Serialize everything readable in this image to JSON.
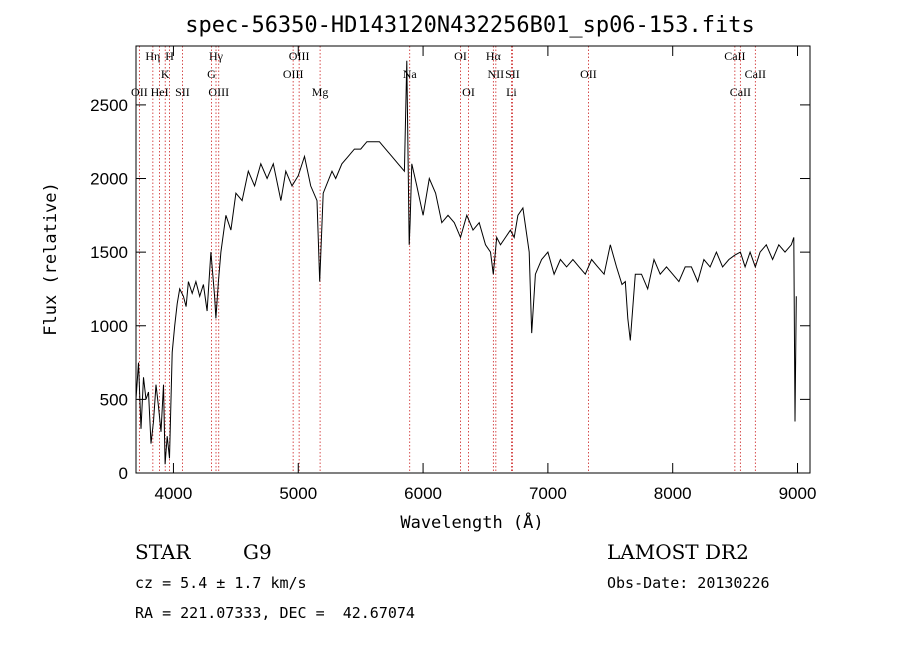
{
  "chart_data": {
    "type": "line",
    "title": "spec-56350-HD143120N432256B01_sp06-153.fits",
    "xlabel": "Wavelength (Å)",
    "ylabel": "Flux (relative)",
    "xlim": [
      3700,
      9100
    ],
    "ylim": [
      0,
      2900
    ],
    "xticks": [
      4000,
      5000,
      6000,
      7000,
      8000,
      9000
    ],
    "yticks": [
      0,
      500,
      1000,
      1500,
      2000,
      2500
    ],
    "grid": false,
    "series": [
      {
        "x": [
          3700,
          3720,
          3740,
          3760,
          3780,
          3800,
          3820,
          3840,
          3860,
          3880,
          3900,
          3920,
          3933,
          3950,
          3968,
          3990,
          4010,
          4030,
          4050,
          4080,
          4101,
          4120,
          4150,
          4180,
          4210,
          4240,
          4270,
          4300,
          4330,
          4340,
          4360,
          4380,
          4420,
          4460,
          4500,
          4550,
          4600,
          4650,
          4700,
          4750,
          4800,
          4861,
          4900,
          4950,
          5000,
          5050,
          5100,
          5150,
          5172,
          5200,
          5270,
          5300,
          5350,
          5400,
          5450,
          5500,
          5550,
          5600,
          5650,
          5700,
          5750,
          5800,
          5850,
          5870,
          5889,
          5896,
          5910,
          5950,
          6000,
          6050,
          6100,
          6150,
          6200,
          6250,
          6300,
          6350,
          6400,
          6450,
          6500,
          6540,
          6563,
          6590,
          6620,
          6660,
          6700,
          6730,
          6760,
          6800,
          6850,
          6870,
          6900,
          6950,
          7000,
          7050,
          7100,
          7150,
          7200,
          7250,
          7300,
          7350,
          7400,
          7450,
          7500,
          7550,
          7594,
          7620,
          7640,
          7660,
          7700,
          7750,
          7800,
          7850,
          7900,
          7950,
          8000,
          8050,
          8100,
          8150,
          8200,
          8250,
          8300,
          8350,
          8400,
          8450,
          8498,
          8542,
          8580,
          8620,
          8662,
          8700,
          8750,
          8800,
          8850,
          8900,
          8950,
          8970,
          8980,
          8990
        ],
        "y": [
          500,
          750,
          300,
          650,
          500,
          550,
          200,
          350,
          600,
          450,
          280,
          600,
          60,
          250,
          100,
          820,
          1000,
          1150,
          1250,
          1200,
          1130,
          1300,
          1220,
          1300,
          1200,
          1280,
          1100,
          1500,
          1200,
          1050,
          1300,
          1500,
          1750,
          1650,
          1900,
          1850,
          2050,
          1950,
          2100,
          2000,
          2100,
          1850,
          2050,
          1950,
          2020,
          2150,
          1950,
          1850,
          1300,
          1900,
          2050,
          2000,
          2100,
          2150,
          2200,
          2200,
          2250,
          2250,
          2250,
          2200,
          2150,
          2100,
          2050,
          2800,
          1550,
          1700,
          2100,
          1950,
          1750,
          2000,
          1900,
          1700,
          1750,
          1700,
          1600,
          1750,
          1650,
          1700,
          1550,
          1500,
          1350,
          1600,
          1550,
          1600,
          1650,
          1600,
          1750,
          1800,
          1500,
          950,
          1350,
          1450,
          1500,
          1350,
          1450,
          1400,
          1450,
          1400,
          1350,
          1450,
          1400,
          1350,
          1550,
          1400,
          1280,
          1300,
          1050,
          900,
          1350,
          1350,
          1250,
          1450,
          1350,
          1400,
          1350,
          1300,
          1400,
          1400,
          1300,
          1450,
          1400,
          1500,
          1400,
          1450,
          1480,
          1500,
          1400,
          1500,
          1400,
          1500,
          1550,
          1450,
          1550,
          1500,
          1550,
          1600,
          350,
          1200
        ]
      }
    ],
    "line_markers": [
      {
        "label": "OII",
        "x": 3727,
        "row": 3
      },
      {
        "label": "Hη",
        "x": 3835,
        "row": 1
      },
      {
        "label": "HeI",
        "x": 3889,
        "row": 3
      },
      {
        "label": "K",
        "x": 3934,
        "row": 2
      },
      {
        "label": "H",
        "x": 3969,
        "row": 1
      },
      {
        "label": "SII",
        "x": 4072,
        "row": 3
      },
      {
        "label": "Hγ",
        "x": 4341,
        "row": 1
      },
      {
        "label": "G",
        "x": 4305,
        "row": 2
      },
      {
        "label": "OIII",
        "x": 4363,
        "row": 3
      },
      {
        "label": "OIII",
        "x": 5007,
        "row": 1
      },
      {
        "label": "OIII",
        "x": 4959,
        "row": 2
      },
      {
        "label": "Mg",
        "x": 5175,
        "row": 3
      },
      {
        "label": "Na",
        "x": 5893,
        "row": 2
      },
      {
        "label": "OI",
        "x": 6300,
        "row": 1
      },
      {
        "label": "OI",
        "x": 6364,
        "row": 3
      },
      {
        "label": "Hα",
        "x": 6563,
        "row": 1
      },
      {
        "label": "NII",
        "x": 6583,
        "row": 2
      },
      {
        "label": "SII",
        "x": 6716,
        "row": 2
      },
      {
        "label": "Li",
        "x": 6708,
        "row": 3
      },
      {
        "label": "OII",
        "x": 7325,
        "row": 2
      },
      {
        "label": "CaII",
        "x": 8498,
        "row": 1
      },
      {
        "label": "CaII",
        "x": 8542,
        "row": 3
      },
      {
        "label": "CaII",
        "x": 8662,
        "row": 2
      }
    ],
    "colors": {
      "spectrum": "#000000",
      "line_marker": "#cc2222"
    }
  },
  "info": {
    "class": "STAR",
    "subclass": "G9",
    "survey": "LAMOST DR2",
    "cz": "cz = 5.4 ± 1.7 km/s",
    "obs_date": "Obs-Date: 20130226",
    "coords": "RA = 221.07333, DEC =  42.67074"
  }
}
